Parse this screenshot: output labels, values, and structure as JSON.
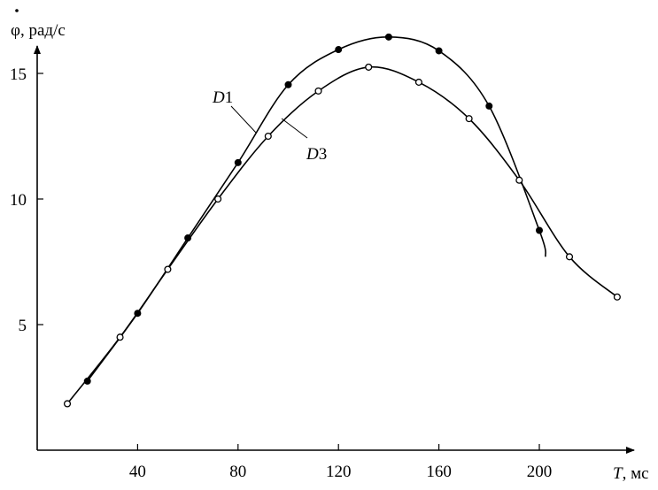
{
  "chart_data": {
    "type": "line",
    "title": "",
    "xlabel": "T, мс",
    "xlabel_parts": {
      "symbol": "T",
      "unit": ", мс"
    },
    "ylabel": "φ̇, рад/с",
    "ylabel_parts": {
      "symbol": "φ",
      "unit": ", рад/с"
    },
    "xlim": [
      0,
      236
    ],
    "ylim": [
      0,
      17.5
    ],
    "xticks": [
      40,
      80,
      120,
      160,
      200
    ],
    "yticks": [
      5,
      10,
      15
    ],
    "grid": false,
    "series": [
      {
        "name": "D1",
        "label_main": "D",
        "label_sub": "1",
        "marker": "filled",
        "color": "#000000",
        "x": [
          20,
          40,
          60,
          80,
          100,
          120,
          140,
          160,
          180,
          200
        ],
        "y": [
          2.75,
          5.45,
          8.45,
          11.45,
          14.55,
          15.95,
          16.45,
          15.9,
          13.7,
          8.75
        ],
        "curve_end": [
          202.5,
          7.7
        ]
      },
      {
        "name": "D3",
        "label_main": "D",
        "label_sub": "3",
        "marker": "open",
        "color": "#000000",
        "x": [
          12,
          33,
          52,
          72,
          92,
          112,
          132,
          152,
          172,
          192,
          212,
          231
        ],
        "y": [
          1.85,
          4.5,
          7.2,
          10.0,
          12.5,
          14.3,
          15.25,
          14.65,
          13.2,
          10.75,
          7.7,
          6.1
        ]
      }
    ]
  }
}
